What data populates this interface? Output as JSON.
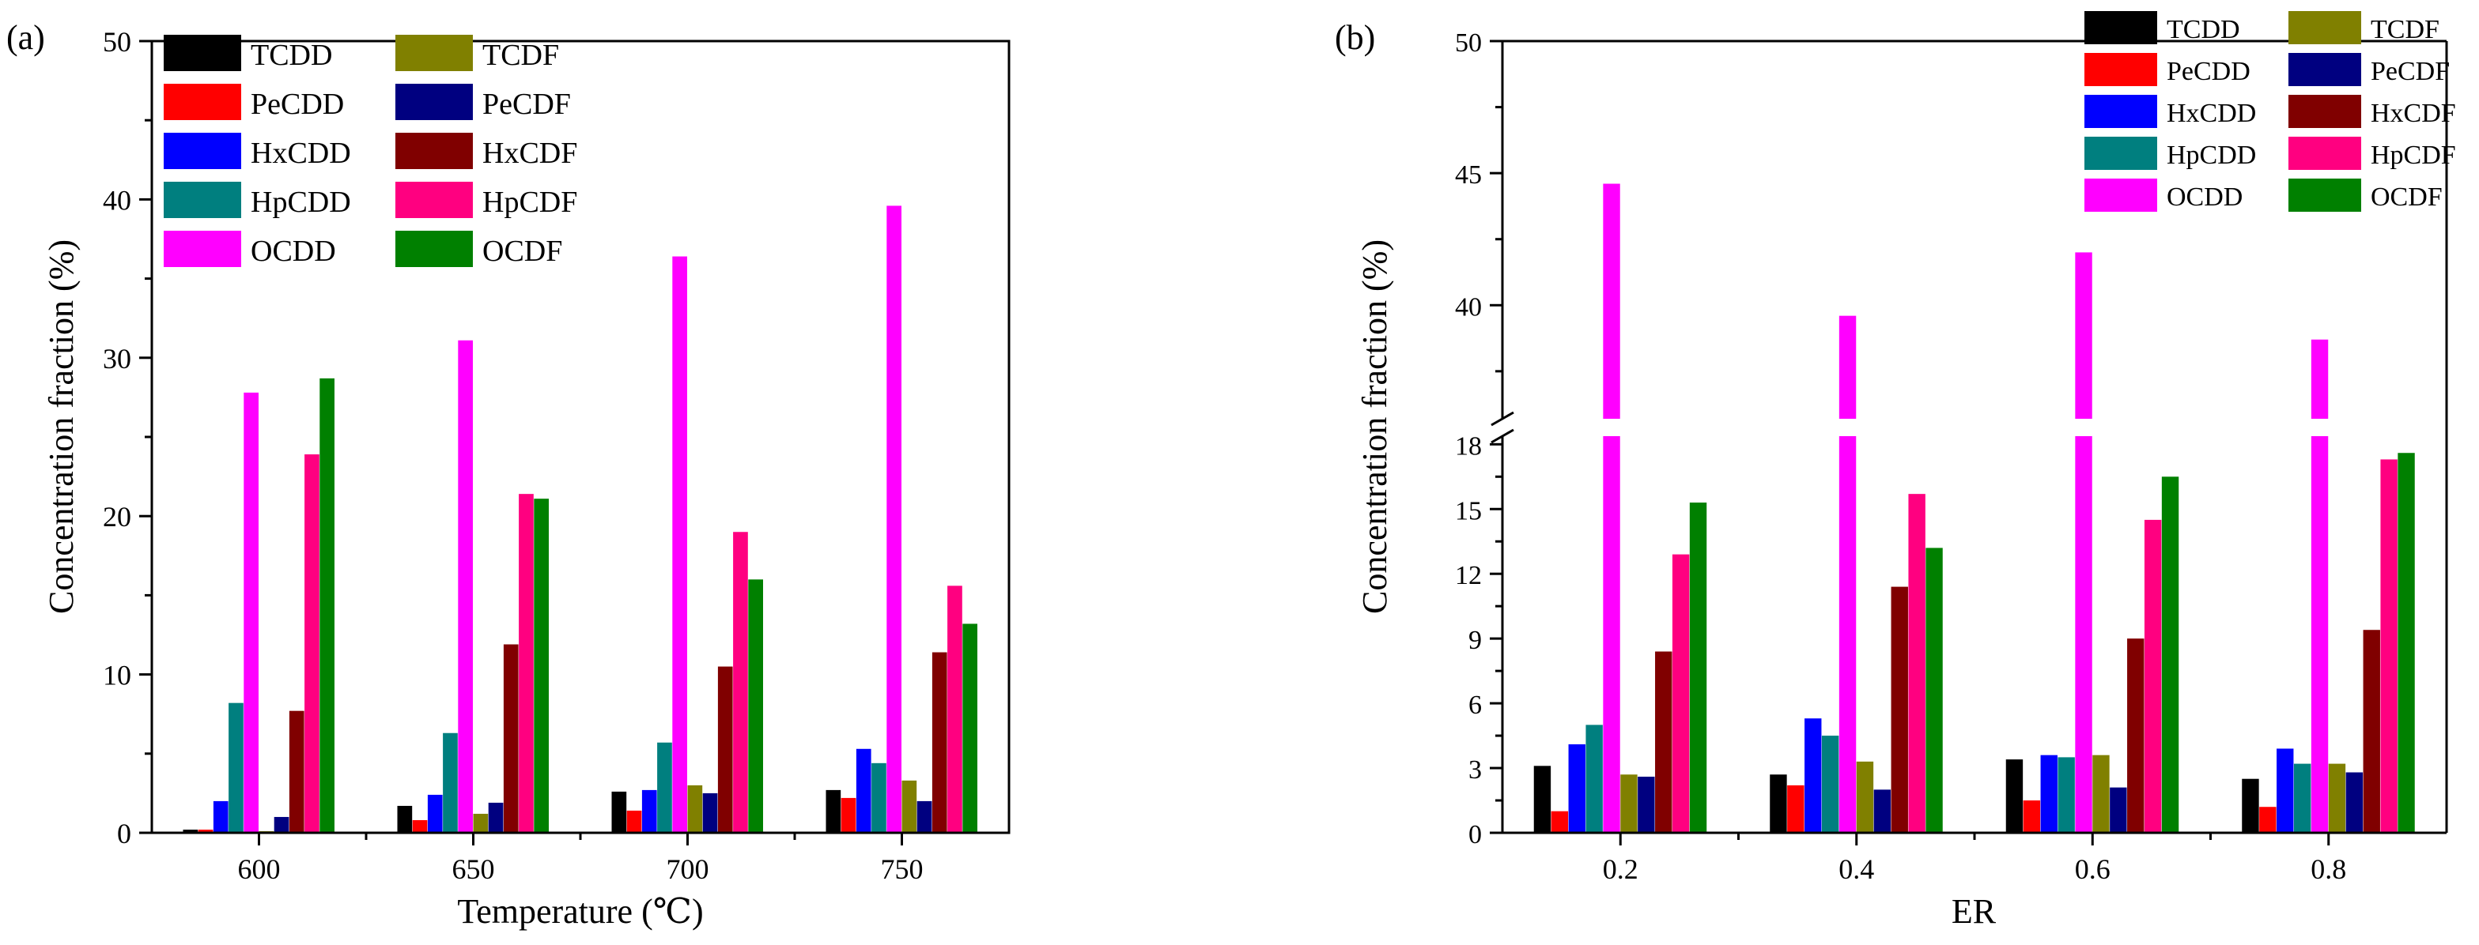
{
  "chart_data": [
    {
      "panel_label": "(a)",
      "type": "bar",
      "xlabel": "Temperature (℃)",
      "ylabel": "Concentration fraction (%)",
      "ylim": [
        0,
        50
      ],
      "yticks": [
        "0",
        "10",
        "20",
        "30",
        "40",
        "50"
      ],
      "categories": [
        "600",
        "650",
        "700",
        "750"
      ],
      "series": [
        {
          "name": "TCDD",
          "color": "#000000",
          "values": [
            0.2,
            1.7,
            2.6,
            2.7
          ]
        },
        {
          "name": "PeCDD",
          "color": "#ff0000",
          "values": [
            0.2,
            0.8,
            1.4,
            2.2
          ]
        },
        {
          "name": "HxCDD",
          "color": "#0000ff",
          "values": [
            2.0,
            2.4,
            2.7,
            5.3
          ]
        },
        {
          "name": "HpCDD",
          "color": "#007f7f",
          "values": [
            8.2,
            6.3,
            5.7,
            4.4
          ]
        },
        {
          "name": "OCDD",
          "color": "#ff00ff",
          "values": [
            27.8,
            31.1,
            36.4,
            39.6
          ]
        },
        {
          "name": "TCDF",
          "color": "#808000",
          "values": [
            0.1,
            1.2,
            3.0,
            3.3
          ]
        },
        {
          "name": "PeCDF",
          "color": "#000080",
          "values": [
            1.0,
            1.9,
            2.5,
            2.0
          ]
        },
        {
          "name": "HxCDF",
          "color": "#800000",
          "values": [
            7.7,
            11.9,
            10.5,
            11.4
          ]
        },
        {
          "name": "HpCDF",
          "color": "#ff0080",
          "values": [
            23.9,
            21.4,
            19.0,
            15.6
          ]
        },
        {
          "name": "OCDF",
          "color": "#008000",
          "values": [
            28.7,
            21.1,
            16.0,
            13.2
          ]
        }
      ],
      "legend": "top-left"
    },
    {
      "panel_label": "(b)",
      "type": "bar",
      "xlabel": "ER",
      "ylabel": "Concentration fraction (%)",
      "axis_break": [
        18.5,
        36
      ],
      "ylim_lower": [
        0,
        19
      ],
      "ylim_upper": [
        36,
        50
      ],
      "yticks_lower": [
        "0",
        "3",
        "6",
        "9",
        "12",
        "15",
        "18"
      ],
      "yticks_upper": [
        "40",
        "45",
        "50"
      ],
      "categories": [
        "0.2",
        "0.4",
        "0.6",
        "0.8"
      ],
      "series": [
        {
          "name": "TCDD",
          "color": "#000000",
          "values": [
            3.1,
            2.7,
            3.4,
            2.5
          ]
        },
        {
          "name": "PeCDD",
          "color": "#ff0000",
          "values": [
            1.0,
            2.2,
            1.5,
            1.2
          ]
        },
        {
          "name": "HxCDD",
          "color": "#0000ff",
          "values": [
            4.1,
            5.3,
            3.6,
            3.9
          ]
        },
        {
          "name": "HpCDD",
          "color": "#007f7f",
          "values": [
            5.0,
            4.5,
            3.5,
            3.2
          ]
        },
        {
          "name": "OCDD",
          "color": "#ff00ff",
          "values": [
            44.6,
            39.6,
            42.0,
            38.7
          ]
        },
        {
          "name": "TCDF",
          "color": "#808000",
          "values": [
            2.7,
            3.3,
            3.6,
            3.2
          ]
        },
        {
          "name": "PeCDF",
          "color": "#000080",
          "values": [
            2.6,
            2.0,
            2.1,
            2.8
          ]
        },
        {
          "name": "HxCDF",
          "color": "#800000",
          "values": [
            8.4,
            11.4,
            9.0,
            9.4
          ]
        },
        {
          "name": "HpCDF",
          "color": "#ff0080",
          "values": [
            12.9,
            15.7,
            14.5,
            17.3
          ]
        },
        {
          "name": "OCDF",
          "color": "#008000",
          "values": [
            15.3,
            13.2,
            16.5,
            17.6
          ]
        }
      ],
      "legend": "top-right"
    }
  ]
}
